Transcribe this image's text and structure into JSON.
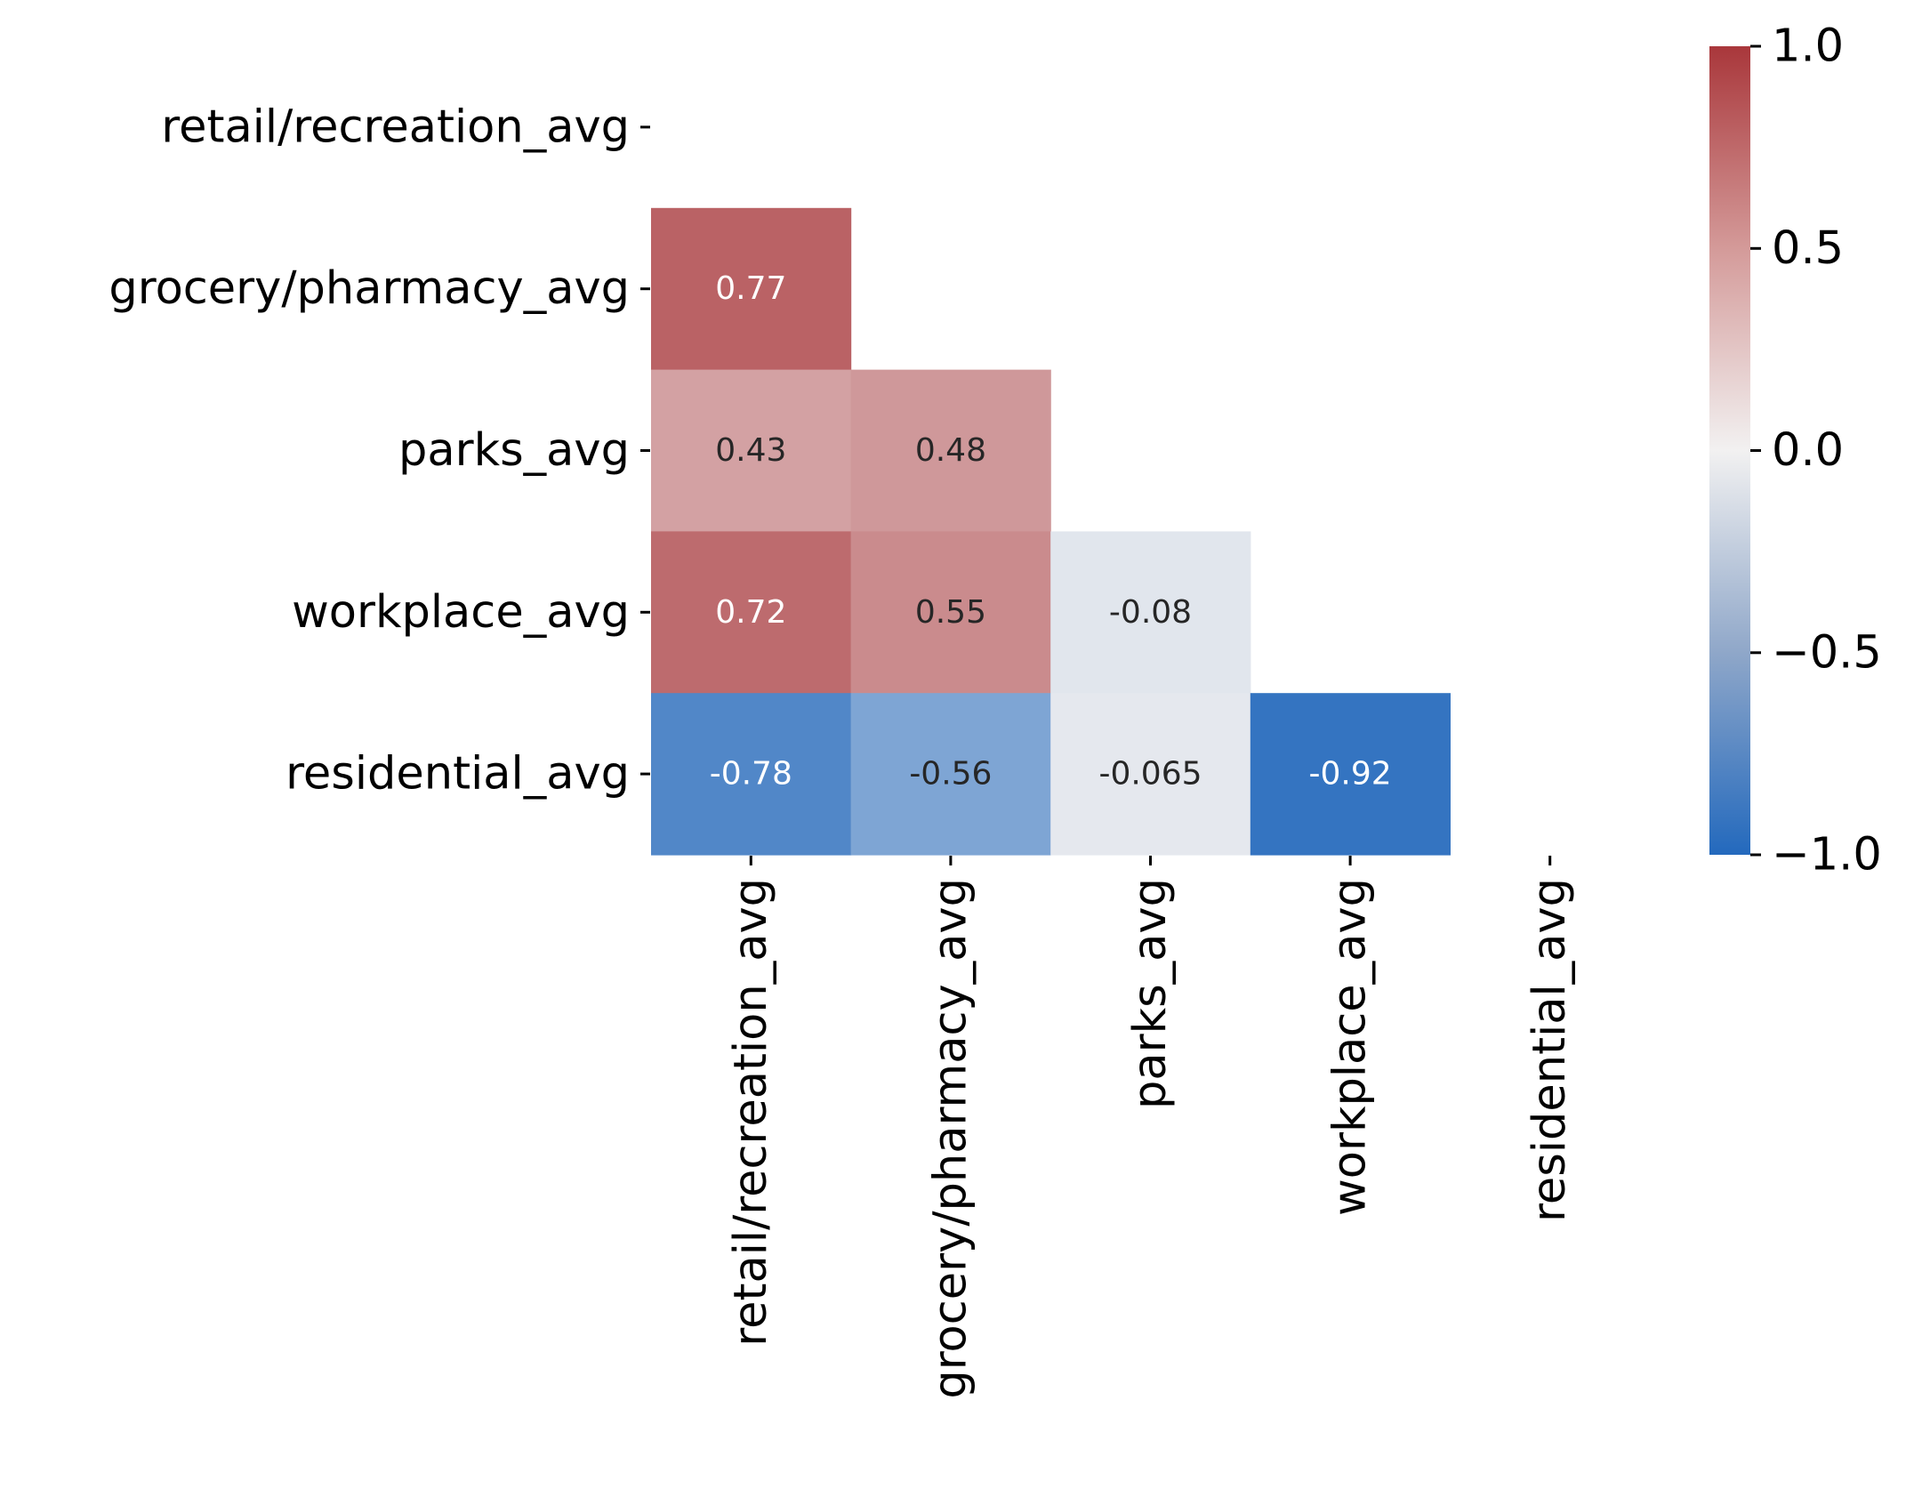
{
  "chart_data": {
    "type": "heatmap",
    "title": "",
    "xlabel": "",
    "ylabel": "",
    "variables": [
      "retail/recreation_avg",
      "grocery/pharmacy_avg",
      "parks_avg",
      "workplace_avg",
      "residential_avg"
    ],
    "mask": "upper-triangle-and-diagonal",
    "cells": [
      {
        "row": "grocery/pharmacy_avg",
        "col": "retail/recreation_avg",
        "value": 0.77,
        "label": "0.77"
      },
      {
        "row": "parks_avg",
        "col": "retail/recreation_avg",
        "value": 0.43,
        "label": "0.43"
      },
      {
        "row": "parks_avg",
        "col": "grocery/pharmacy_avg",
        "value": 0.48,
        "label": "0.48"
      },
      {
        "row": "workplace_avg",
        "col": "retail/recreation_avg",
        "value": 0.72,
        "label": "0.72"
      },
      {
        "row": "workplace_avg",
        "col": "grocery/pharmacy_avg",
        "value": 0.55,
        "label": "0.55"
      },
      {
        "row": "workplace_avg",
        "col": "parks_avg",
        "value": -0.08,
        "label": "-0.08"
      },
      {
        "row": "residential_avg",
        "col": "retail/recreation_avg",
        "value": -0.78,
        "label": "-0.78"
      },
      {
        "row": "residential_avg",
        "col": "grocery/pharmacy_avg",
        "value": -0.56,
        "label": "-0.56"
      },
      {
        "row": "residential_avg",
        "col": "parks_avg",
        "value": -0.065,
        "label": "-0.065"
      },
      {
        "row": "residential_avg",
        "col": "workplace_avg",
        "value": -0.92,
        "label": "-0.92"
      }
    ],
    "colorbar": {
      "vmin": -1.0,
      "vmax": 1.0,
      "ticks": [
        1.0,
        0.5,
        0.0,
        -0.5,
        -1.0
      ],
      "tick_labels": [
        "1.0",
        "0.5",
        "0.0",
        "−0.5",
        "−1.0"
      ],
      "colormap": "vlag",
      "color_low": "#2369bd",
      "color_mid": "#f2f1f1",
      "color_high": "#a9373b"
    }
  }
}
